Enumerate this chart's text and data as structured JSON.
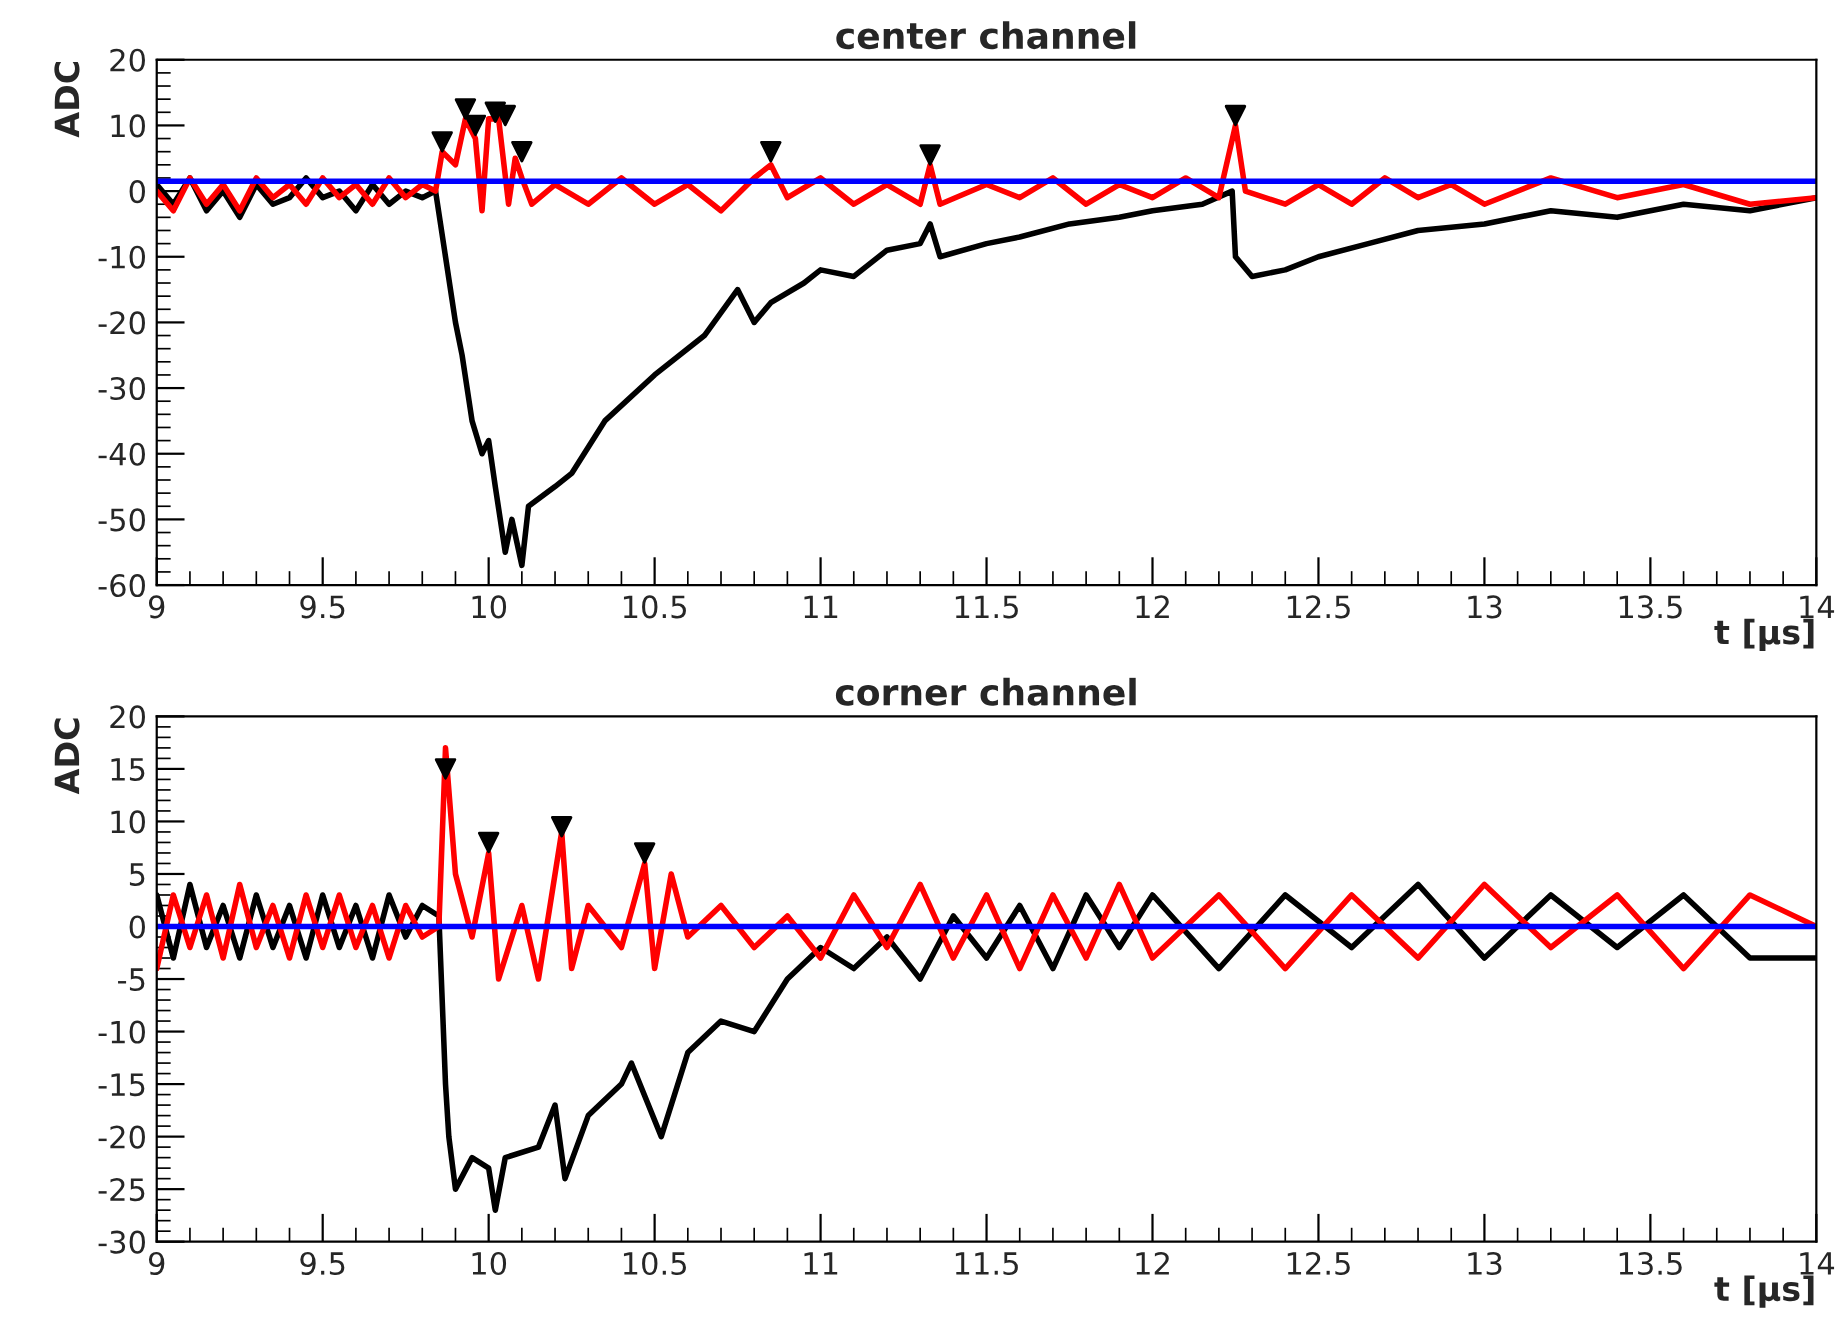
{
  "chart_data": [
    {
      "type": "line",
      "title": "center channel",
      "xlabel": "t [µs]",
      "ylabel": "ADC",
      "xlim": [
        9,
        14
      ],
      "ylim": [
        -60,
        20
      ],
      "xticks": [
        9,
        9.5,
        10,
        10.5,
        11,
        11.5,
        12,
        12.5,
        13,
        13.5,
        14
      ],
      "yticks": [
        -60,
        -50,
        -40,
        -30,
        -20,
        -10,
        0,
        10,
        20
      ],
      "grid": false,
      "legend": false,
      "series": [
        {
          "color": "#000000",
          "x": [
            9.0,
            9.05,
            9.1,
            9.15,
            9.2,
            9.25,
            9.3,
            9.35,
            9.4,
            9.45,
            9.5,
            9.55,
            9.6,
            9.65,
            9.7,
            9.75,
            9.8,
            9.84,
            9.87,
            9.9,
            9.92,
            9.95,
            9.98,
            10.0,
            10.02,
            10.05,
            10.07,
            10.1,
            10.12,
            10.2,
            10.25,
            10.35,
            10.5,
            10.65,
            10.75,
            10.8,
            10.85,
            10.95,
            11.0,
            11.1,
            11.2,
            11.3,
            11.33,
            11.36,
            11.5,
            11.6,
            11.75,
            11.9,
            12.0,
            12.15,
            12.24,
            12.25,
            12.3,
            12.4,
            12.5,
            12.65,
            12.8,
            13.0,
            13.2,
            13.4,
            13.6,
            13.8,
            14.0
          ],
          "values": [
            1,
            -2,
            2,
            -3,
            0,
            -4,
            1,
            -2,
            -1,
            2,
            -1,
            0,
            -3,
            1,
            -2,
            0,
            -1,
            0,
            -10,
            -20,
            -25,
            -35,
            -40,
            -38,
            -45,
            -55,
            -50,
            -57,
            -48,
            -45,
            -43,
            -35,
            -28,
            -22,
            -15,
            -20,
            -17,
            -14,
            -12,
            -13,
            -9,
            -8,
            -5,
            -10,
            -8,
            -7,
            -5,
            -4,
            -3,
            -2,
            0,
            -10,
            -13,
            -12,
            -10,
            -8,
            -6,
            -5,
            -3,
            -4,
            -2,
            -3,
            -1
          ]
        },
        {
          "color": "#ff0000",
          "x": [
            9.0,
            9.05,
            9.1,
            9.15,
            9.2,
            9.25,
            9.3,
            9.35,
            9.4,
            9.45,
            9.5,
            9.55,
            9.6,
            9.65,
            9.7,
            9.75,
            9.8,
            9.84,
            9.86,
            9.9,
            9.93,
            9.96,
            9.98,
            10.0,
            10.03,
            10.06,
            10.08,
            10.1,
            10.13,
            10.2,
            10.3,
            10.4,
            10.5,
            10.6,
            10.7,
            10.8,
            10.85,
            10.9,
            11.0,
            11.1,
            11.2,
            11.3,
            11.33,
            11.36,
            11.5,
            11.6,
            11.7,
            11.8,
            11.9,
            12.0,
            12.1,
            12.2,
            12.25,
            12.28,
            12.4,
            12.5,
            12.6,
            12.7,
            12.8,
            12.9,
            13.0,
            13.2,
            13.4,
            13.6,
            13.8,
            14.0
          ],
          "values": [
            0,
            -3,
            2,
            -2,
            1,
            -3,
            2,
            -1,
            1,
            -2,
            2,
            -1,
            1,
            -2,
            2,
            -1,
            1,
            0,
            6,
            4,
            11,
            8,
            -3,
            11,
            11,
            -2,
            5,
            2,
            -2,
            1,
            -2,
            2,
            -2,
            1,
            -3,
            2,
            4,
            -1,
            2,
            -2,
            1,
            -2,
            4,
            -2,
            1,
            -1,
            2,
            -2,
            1,
            -1,
            2,
            -1,
            10,
            0,
            -2,
            1,
            -2,
            2,
            -1,
            1,
            -2,
            2,
            -1,
            1,
            -2,
            -1
          ]
        },
        {
          "color": "#0000ff",
          "x": [
            9,
            14
          ],
          "values": [
            1.5,
            1.5
          ]
        },
        {
          "type": "scatter",
          "marker": "triangle",
          "color": "#000000",
          "x": [
            9.86,
            9.93,
            9.96,
            10.02,
            10.05,
            10.1,
            10.85,
            11.33,
            12.25
          ],
          "values": [
            7.5,
            12.5,
            10,
            12,
            11.5,
            6,
            6,
            5.5,
            11.5
          ]
        }
      ]
    },
    {
      "type": "line",
      "title": "corner channel",
      "xlabel": "t [µs]",
      "ylabel": "ADC",
      "xlim": [
        9,
        14
      ],
      "ylim": [
        -30,
        20
      ],
      "xticks": [
        9,
        9.5,
        10,
        10.5,
        11,
        11.5,
        12,
        12.5,
        13,
        13.5,
        14
      ],
      "yticks": [
        -30,
        -25,
        -20,
        -15,
        -10,
        -5,
        0,
        5,
        10,
        15,
        20
      ],
      "grid": false,
      "legend": false,
      "series": [
        {
          "color": "#000000",
          "x": [
            9.0,
            9.05,
            9.1,
            9.15,
            9.2,
            9.25,
            9.3,
            9.35,
            9.4,
            9.45,
            9.5,
            9.55,
            9.6,
            9.65,
            9.7,
            9.75,
            9.8,
            9.85,
            9.87,
            9.88,
            9.9,
            9.95,
            10.0,
            10.02,
            10.05,
            10.15,
            10.2,
            10.23,
            10.3,
            10.4,
            10.43,
            10.52,
            10.6,
            10.7,
            10.8,
            10.9,
            11.0,
            11.1,
            11.2,
            11.3,
            11.4,
            11.5,
            11.6,
            11.7,
            11.8,
            11.9,
            12.0,
            12.2,
            12.4,
            12.6,
            12.8,
            13.0,
            13.2,
            13.4,
            13.6,
            13.8,
            14.0
          ],
          "values": [
            3,
            -3,
            4,
            -2,
            2,
            -3,
            3,
            -2,
            2,
            -3,
            3,
            -2,
            2,
            -3,
            3,
            -1,
            2,
            1,
            -15,
            -20,
            -25,
            -22,
            -23,
            -27,
            -22,
            -21,
            -17,
            -24,
            -18,
            -15,
            -13,
            -20,
            -12,
            -9,
            -10,
            -5,
            -2,
            -4,
            -1,
            -5,
            1,
            -3,
            2,
            -4,
            3,
            -2,
            3,
            -4,
            3,
            -2,
            4,
            -3,
            3,
            -2,
            3,
            -3,
            -3
          ]
        },
        {
          "color": "#ff0000",
          "x": [
            9.0,
            9.05,
            9.1,
            9.15,
            9.2,
            9.25,
            9.3,
            9.35,
            9.4,
            9.45,
            9.5,
            9.55,
            9.6,
            9.65,
            9.7,
            9.75,
            9.8,
            9.85,
            9.87,
            9.9,
            9.95,
            10.0,
            10.03,
            10.1,
            10.15,
            10.22,
            10.25,
            10.3,
            10.4,
            10.47,
            10.5,
            10.55,
            10.6,
            10.7,
            10.8,
            10.9,
            11.0,
            11.1,
            11.2,
            11.3,
            11.4,
            11.5,
            11.6,
            11.7,
            11.8,
            11.9,
            12.0,
            12.2,
            12.4,
            12.6,
            12.8,
            13.0,
            13.2,
            13.4,
            13.6,
            13.8,
            14.0
          ],
          "values": [
            -4,
            3,
            -2,
            3,
            -3,
            4,
            -2,
            2,
            -3,
            3,
            -2,
            3,
            -2,
            2,
            -3,
            2,
            -1,
            0,
            17,
            5,
            -1,
            7,
            -5,
            2,
            -5,
            9,
            -4,
            2,
            -2,
            6,
            -4,
            5,
            -1,
            2,
            -2,
            1,
            -3,
            3,
            -2,
            4,
            -3,
            3,
            -4,
            3,
            -3,
            4,
            -3,
            3,
            -4,
            3,
            -3,
            4,
            -2,
            3,
            -4,
            3,
            0
          ]
        },
        {
          "color": "#0000ff",
          "x": [
            9,
            14
          ],
          "values": [
            0,
            0
          ]
        },
        {
          "type": "scatter",
          "marker": "triangle",
          "color": "#000000",
          "x": [
            9.87,
            10.0,
            10.22,
            10.47
          ],
          "values": [
            15,
            8,
            9.5,
            7
          ]
        }
      ]
    }
  ]
}
